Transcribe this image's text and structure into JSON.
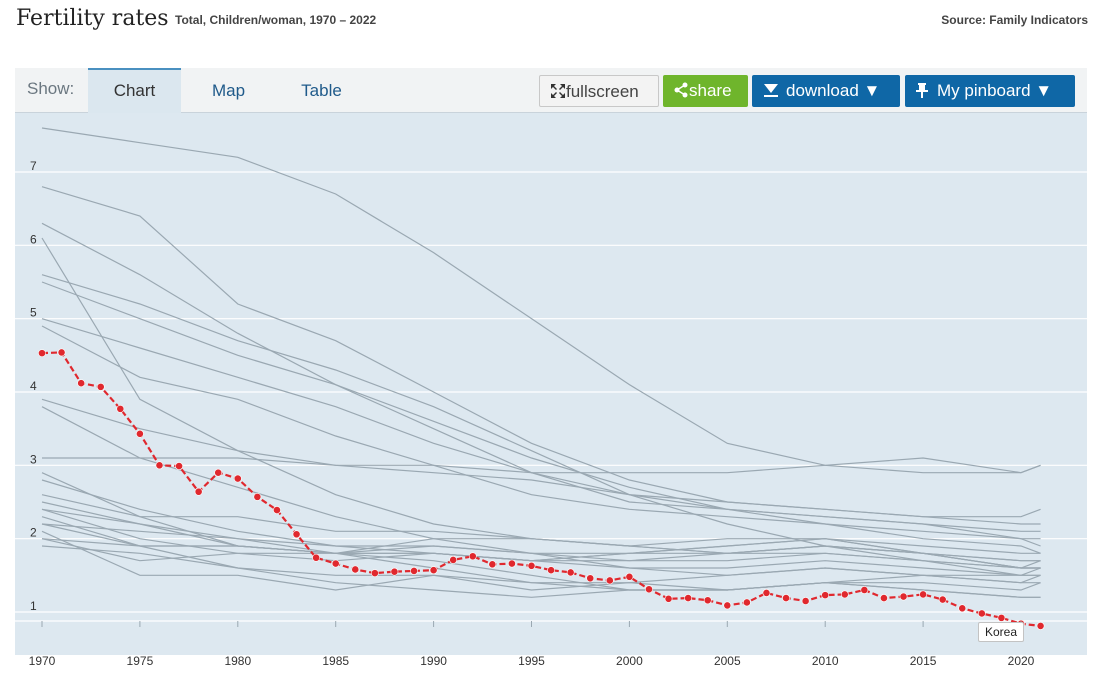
{
  "header": {
    "title": "Fertility rates",
    "subtitle": "Total, Children/woman, 1970 – 2022",
    "source": "Source: Family Indicators"
  },
  "toolbar": {
    "show_label": "Show:",
    "tabs": [
      "Chart",
      "Map",
      "Table"
    ],
    "active_tab": "Chart",
    "fullscreen_label": "fullscreen",
    "share_label": "share",
    "download_label": "download ▼",
    "pinboard_label": "My pinboard ▼"
  },
  "colors": {
    "highlight": "#e0282e",
    "background_lines": "#9aa8b2",
    "plot_bg": "#dde8f0",
    "accent_blue": "#0f67a6",
    "share_green": "#6fb52c"
  },
  "chart_data": {
    "type": "line",
    "ylim": [
      0.8,
      7.7
    ],
    "y_ticks": [
      1,
      2,
      3,
      4,
      5,
      6,
      7
    ],
    "xlim": [
      1970,
      2022.5
    ],
    "x_ticks": [
      1970,
      1975,
      1980,
      1985,
      1990,
      1995,
      2000,
      2005,
      2010,
      2015,
      2020
    ],
    "grid": true,
    "highlight_series": {
      "name": "Korea",
      "x": [
        1970,
        1971,
        1972,
        1973,
        1974,
        1975,
        1976,
        1977,
        1978,
        1979,
        1980,
        1981,
        1982,
        1983,
        1984,
        1985,
        1986,
        1987,
        1988,
        1989,
        1990,
        1991,
        1992,
        1993,
        1994,
        1995,
        1996,
        1997,
        1998,
        1999,
        2000,
        2001,
        2002,
        2003,
        2004,
        2005,
        2006,
        2007,
        2008,
        2009,
        2010,
        2011,
        2012,
        2013,
        2014,
        2015,
        2016,
        2017,
        2018,
        2019,
        2020,
        2021
      ],
      "y": [
        4.53,
        4.54,
        4.12,
        4.07,
        3.77,
        3.43,
        3.0,
        2.99,
        2.64,
        2.9,
        2.82,
        2.57,
        2.39,
        2.06,
        1.74,
        1.66,
        1.58,
        1.53,
        1.55,
        1.56,
        1.57,
        1.71,
        1.76,
        1.65,
        1.66,
        1.63,
        1.57,
        1.54,
        1.46,
        1.43,
        1.48,
        1.31,
        1.18,
        1.19,
        1.16,
        1.09,
        1.13,
        1.26,
        1.19,
        1.15,
        1.23,
        1.24,
        1.3,
        1.19,
        1.21,
        1.24,
        1.17,
        1.05,
        0.98,
        0.92,
        0.84,
        0.81
      ]
    },
    "background_series": [
      {
        "x": [
          1970,
          1975,
          1980,
          1985,
          1990,
          1995,
          2000,
          2005,
          2010,
          2015,
          2020,
          2021
        ],
        "y": [
          7.6,
          7.4,
          7.2,
          6.7,
          5.9,
          5.0,
          4.1,
          3.3,
          3.0,
          2.9,
          2.9,
          3.0
        ]
      },
      {
        "x": [
          1970,
          1975,
          1980,
          1985,
          1990,
          1995,
          2000,
          2005,
          2010,
          2015,
          2020,
          2021
        ],
        "y": [
          6.8,
          6.4,
          5.2,
          4.7,
          4.0,
          3.3,
          2.8,
          2.5,
          2.4,
          2.3,
          2.2,
          2.2
        ]
      },
      {
        "x": [
          1970,
          1975,
          1980,
          1985,
          1990,
          1995,
          2000,
          2005,
          2010,
          2015,
          2020,
          2021
        ],
        "y": [
          6.3,
          5.6,
          4.8,
          4.1,
          3.5,
          2.9,
          2.5,
          2.4,
          2.3,
          2.2,
          2.0,
          1.9
        ]
      },
      {
        "x": [
          1970,
          1975,
          1980,
          1985,
          1990,
          1995,
          2000,
          2005,
          2010,
          2015,
          2020,
          2021
        ],
        "y": [
          6.1,
          3.9,
          3.2,
          2.6,
          2.2,
          2.0,
          1.9,
          1.8,
          1.9,
          1.8,
          1.6,
          1.6
        ]
      },
      {
        "x": [
          1970,
          1975,
          1980,
          1985,
          1990,
          1995,
          2000,
          2005,
          2010,
          2015,
          2020,
          2021
        ],
        "y": [
          5.6,
          5.2,
          4.7,
          4.3,
          3.8,
          3.2,
          2.6,
          2.2,
          1.9,
          1.7,
          1.5,
          1.5
        ]
      },
      {
        "x": [
          1970,
          1975,
          1980,
          1985,
          1990,
          1995,
          2000,
          2005,
          2010,
          2015,
          2020,
          2021
        ],
        "y": [
          5.5,
          5.0,
          4.5,
          4.1,
          3.6,
          3.1,
          2.7,
          2.4,
          2.3,
          2.2,
          2.1,
          2.1
        ]
      },
      {
        "x": [
          1970,
          1975,
          1980,
          1985,
          1990,
          1995,
          2000,
          2005,
          2010,
          2015,
          2020,
          2021
        ],
        "y": [
          5.0,
          4.6,
          4.2,
          3.8,
          3.3,
          2.9,
          2.6,
          2.5,
          2.4,
          2.3,
          2.3,
          2.4
        ]
      },
      {
        "x": [
          1970,
          1975,
          1980,
          1985,
          1990,
          1995,
          2000,
          2005,
          2010,
          2015,
          2020,
          2021
        ],
        "y": [
          4.9,
          4.2,
          3.9,
          3.4,
          3.0,
          2.6,
          2.4,
          2.3,
          2.2,
          2.1,
          2.0,
          2.0
        ]
      },
      {
        "x": [
          1970,
          1975,
          1980,
          1985,
          1990,
          1995,
          2000,
          2005,
          2010,
          2015,
          2020,
          2021
        ],
        "y": [
          3.9,
          3.5,
          3.2,
          3.0,
          2.9,
          2.8,
          2.6,
          2.4,
          2.2,
          2.0,
          1.9,
          1.8
        ]
      },
      {
        "x": [
          1970,
          1975,
          1980,
          1985,
          1990,
          1995,
          2000,
          2005,
          2010,
          2015,
          2020,
          2021
        ],
        "y": [
          3.8,
          3.1,
          2.7,
          2.3,
          2.0,
          1.8,
          1.6,
          1.5,
          1.6,
          1.5,
          1.4,
          1.4
        ]
      },
      {
        "x": [
          1970,
          1975,
          1980,
          1985,
          1990,
          1995,
          2000,
          2005,
          2010,
          2015,
          2020,
          2021
        ],
        "y": [
          3.1,
          3.1,
          3.1,
          3.0,
          3.0,
          2.9,
          2.9,
          2.9,
          3.0,
          3.1,
          2.9,
          3.0
        ]
      },
      {
        "x": [
          1970,
          1975,
          1980,
          1985,
          1990,
          1995,
          2000,
          2005,
          2010,
          2015,
          2020,
          2021
        ],
        "y": [
          2.9,
          2.3,
          1.9,
          1.8,
          1.6,
          1.4,
          1.3,
          1.3,
          1.4,
          1.3,
          1.2,
          1.2
        ]
      },
      {
        "x": [
          1970,
          1975,
          1980,
          1985,
          1990,
          1995,
          2000,
          2005,
          2010,
          2015,
          2020,
          2021
        ],
        "y": [
          2.8,
          2.4,
          2.1,
          1.9,
          1.8,
          1.7,
          1.6,
          1.6,
          1.7,
          1.6,
          1.5,
          1.5
        ]
      },
      {
        "x": [
          1970,
          1975,
          1980,
          1985,
          1990,
          1995,
          2000,
          2005,
          2010,
          2015,
          2020,
          2021
        ],
        "y": [
          2.5,
          2.2,
          1.9,
          1.8,
          2.0,
          2.0,
          1.9,
          2.0,
          2.0,
          1.8,
          1.6,
          1.7
        ]
      },
      {
        "x": [
          1970,
          1975,
          1980,
          1985,
          1990,
          1995,
          2000,
          2005,
          2010,
          2015,
          2020,
          2021
        ],
        "y": [
          2.4,
          2.0,
          1.8,
          1.7,
          1.8,
          1.7,
          1.8,
          1.9,
          2.0,
          1.9,
          1.8,
          1.8
        ]
      },
      {
        "x": [
          1970,
          1975,
          1980,
          1985,
          1990,
          1995,
          2000,
          2005,
          2010,
          2015,
          2020,
          2021
        ],
        "y": [
          2.3,
          1.9,
          1.9,
          1.8,
          1.8,
          1.7,
          1.7,
          1.8,
          1.9,
          1.8,
          1.7,
          1.7
        ]
      },
      {
        "x": [
          1970,
          1975,
          1980,
          1985,
          1990,
          1995,
          2000,
          2005,
          2010,
          2015,
          2020,
          2021
        ],
        "y": [
          2.2,
          1.9,
          1.6,
          1.5,
          1.5,
          1.4,
          1.4,
          1.5,
          1.6,
          1.5,
          1.4,
          1.5
        ]
      },
      {
        "x": [
          1970,
          1975,
          1980,
          1985,
          1990,
          1995,
          2000,
          2005,
          2010,
          2015,
          2020,
          2021
        ],
        "y": [
          2.1,
          1.5,
          1.5,
          1.3,
          1.5,
          1.3,
          1.4,
          1.3,
          1.4,
          1.5,
          1.5,
          1.6
        ]
      },
      {
        "x": [
          1970,
          1975,
          1980,
          1985,
          1990,
          1995,
          2000,
          2005,
          2010,
          2015,
          2020,
          2021
        ],
        "y": [
          2.0,
          1.7,
          1.8,
          1.8,
          1.8,
          1.7,
          1.8,
          1.9,
          2.0,
          1.8,
          1.7,
          1.7
        ]
      },
      {
        "x": [
          1970,
          1975,
          1980,
          1985,
          1990,
          1995,
          2000,
          2005,
          2010,
          2015,
          2020,
          2021
        ],
        "y": [
          1.9,
          1.8,
          1.6,
          1.4,
          1.3,
          1.2,
          1.3,
          1.3,
          1.4,
          1.4,
          1.3,
          1.4
        ]
      },
      {
        "x": [
          1970,
          1975,
          1980,
          1985,
          1990,
          1995,
          2000,
          2005,
          2010,
          2015,
          2020,
          2021
        ],
        "y": [
          2.4,
          2.2,
          2.0,
          1.8,
          1.7,
          1.5,
          1.3,
          1.3,
          1.4,
          1.3,
          1.2,
          1.2
        ]
      },
      {
        "x": [
          1970,
          1975,
          1980,
          1985,
          1990,
          1995,
          2000,
          2005,
          2010,
          2015,
          2020,
          2021
        ],
        "y": [
          2.0,
          1.9,
          1.9,
          1.8,
          1.9,
          1.8,
          1.7,
          1.7,
          1.8,
          1.7,
          1.6,
          1.6
        ]
      },
      {
        "x": [
          1970,
          1975,
          1980,
          1985,
          1990,
          1995,
          2000,
          2005,
          2010,
          2015,
          2020,
          2021
        ],
        "y": [
          2.6,
          2.3,
          2.3,
          2.1,
          2.1,
          2.0,
          1.9,
          1.8,
          1.8,
          1.7,
          1.6,
          1.6
        ]
      },
      {
        "x": [
          1970,
          1975,
          1980,
          1985,
          1990,
          1995,
          2000,
          2005,
          2010,
          2015,
          2020,
          2021
        ],
        "y": [
          2.2,
          2.1,
          2.0,
          1.9,
          1.9,
          1.8,
          1.8,
          1.8,
          1.9,
          1.8,
          1.6,
          1.6
        ]
      }
    ]
  }
}
